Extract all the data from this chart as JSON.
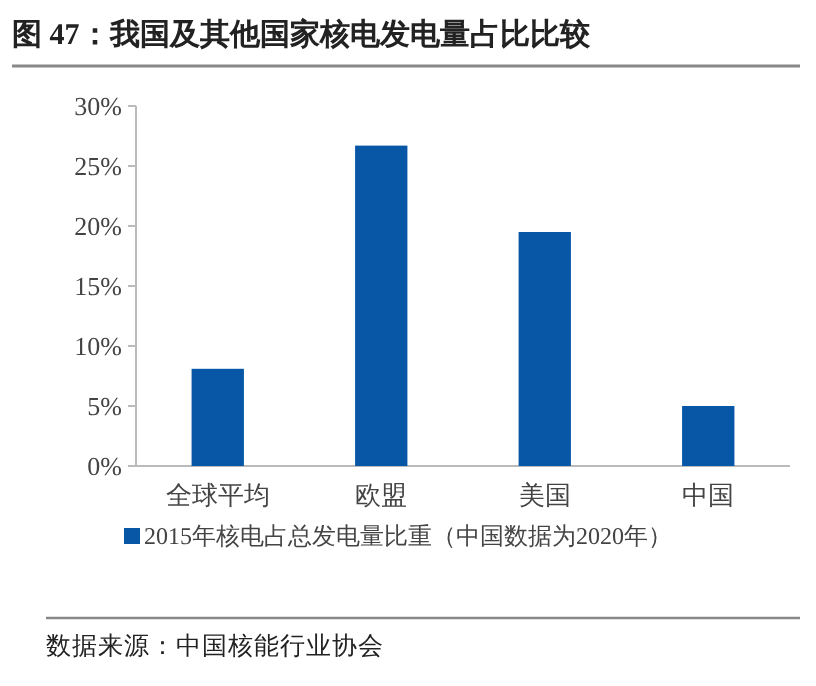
{
  "chart_data": {
    "type": "bar",
    "title": "图 47：我国及其他国家核电发电量占比比较",
    "categories": [
      "全球平均",
      "欧盟",
      "美国",
      "中国"
    ],
    "series": [
      {
        "name": "2015年核电占总发电量比重（中国数据为2020年）",
        "color": "#0757a6",
        "values": [
          8.1,
          26.7,
          19.5,
          5.0
        ]
      }
    ],
    "ylim": [
      0,
      30
    ],
    "yticks": [
      {
        "value": 0,
        "label": "0%"
      },
      {
        "value": 5,
        "label": "5%"
      },
      {
        "value": 10,
        "label": "10%"
      },
      {
        "value": 15,
        "label": "15%"
      },
      {
        "value": 20,
        "label": "20%"
      },
      {
        "value": 25,
        "label": "25%"
      },
      {
        "value": 30,
        "label": "30%"
      }
    ],
    "grid": false,
    "legend": "bottom",
    "annotations": [
      "数据来源：中国核能行业协会"
    ]
  }
}
